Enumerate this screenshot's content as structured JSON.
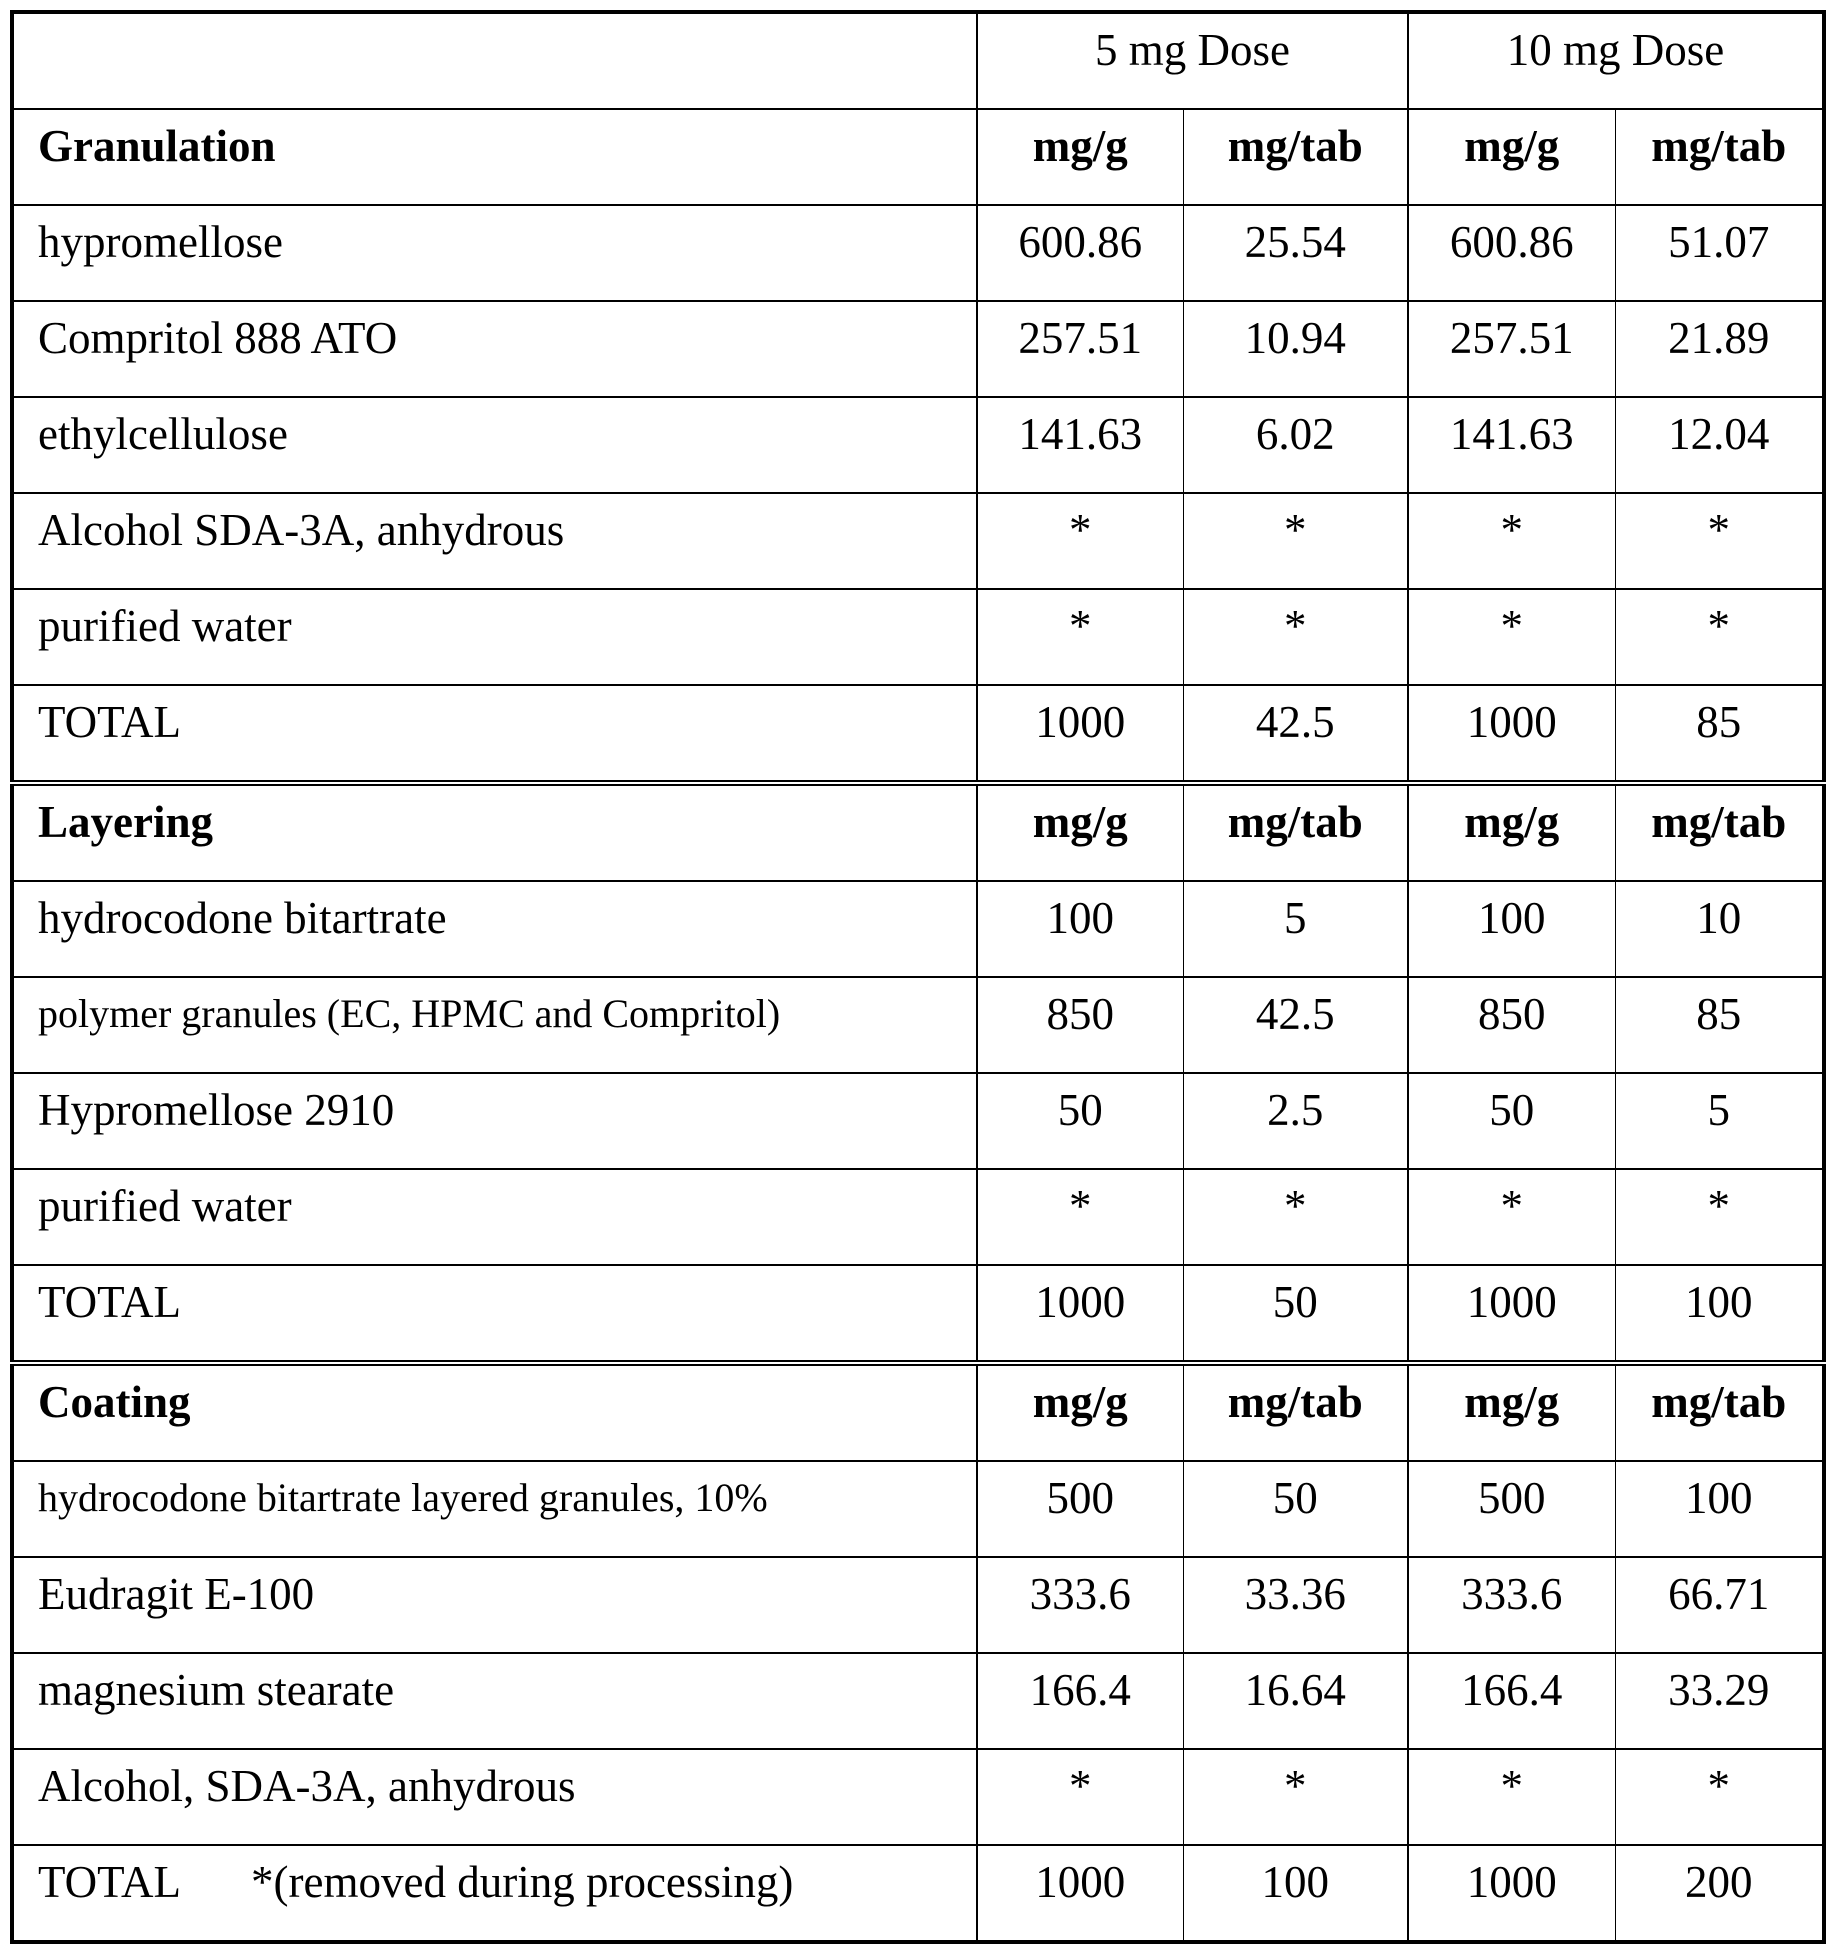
{
  "table": {
    "header": {
      "empty": "",
      "dose_5": "5 mg Dose",
      "dose_10": "10 mg Dose"
    },
    "sections": [
      {
        "title": "Granulation",
        "units": [
          "mg/g",
          "mg/tab",
          "mg/g",
          "mg/tab"
        ],
        "rows": [
          {
            "name": "hypromellose",
            "values": [
              "600.86",
              "25.54",
              "600.86",
              "51.07"
            ]
          },
          {
            "name": "Compritol 888 ATO",
            "values": [
              "257.51",
              "10.94",
              "257.51",
              "21.89"
            ]
          },
          {
            "name": "ethylcellulose",
            "values": [
              "141.63",
              "6.02",
              "141.63",
              "12.04"
            ]
          },
          {
            "name": "Alcohol SDA-3A, anhydrous",
            "values": [
              "*",
              "*",
              "*",
              "*"
            ]
          },
          {
            "name": "purified water",
            "values": [
              "*",
              "*",
              "*",
              "*"
            ]
          },
          {
            "name": "TOTAL",
            "values": [
              "1000",
              "42.5",
              "1000",
              "85"
            ]
          }
        ]
      },
      {
        "title": "Layering",
        "units": [
          "mg/g",
          "mg/tab",
          "mg/g",
          "mg/tab"
        ],
        "rows": [
          {
            "name": "hydrocodone bitartrate",
            "values": [
              "100",
              "5",
              "100",
              "10"
            ]
          },
          {
            "name": "polymer granules (EC, HPMC and Compritol)",
            "values": [
              "850",
              "42.5",
              "850",
              "85"
            ]
          },
          {
            "name": "Hypromellose 2910",
            "values": [
              "50",
              "2.5",
              "50",
              "5"
            ]
          },
          {
            "name": "purified water",
            "values": [
              "*",
              "*",
              "*",
              "*"
            ]
          },
          {
            "name": "TOTAL",
            "values": [
              "1000",
              "50",
              "1000",
              "100"
            ]
          }
        ]
      },
      {
        "title": "Coating",
        "units": [
          "mg/g",
          "mg/tab",
          "mg/g",
          "mg/tab"
        ],
        "rows": [
          {
            "name": "hydrocodone bitartrate layered granules, 10%",
            "values": [
              "500",
              "50",
              "500",
              "100"
            ]
          },
          {
            "name": "Eudragit E-100",
            "values": [
              "333.6",
              "33.36",
              "333.6",
              "66.71"
            ]
          },
          {
            "name": "magnesium stearate",
            "values": [
              "166.4",
              "16.64",
              "166.4",
              "33.29"
            ]
          },
          {
            "name": "Alcohol, SDA-3A, anhydrous",
            "values": [
              "*",
              "*",
              "*",
              "*"
            ]
          },
          {
            "name": "TOTAL",
            "note": "*(removed during processing)",
            "values": [
              "1000",
              "100",
              "1000",
              "200"
            ]
          }
        ]
      }
    ]
  }
}
